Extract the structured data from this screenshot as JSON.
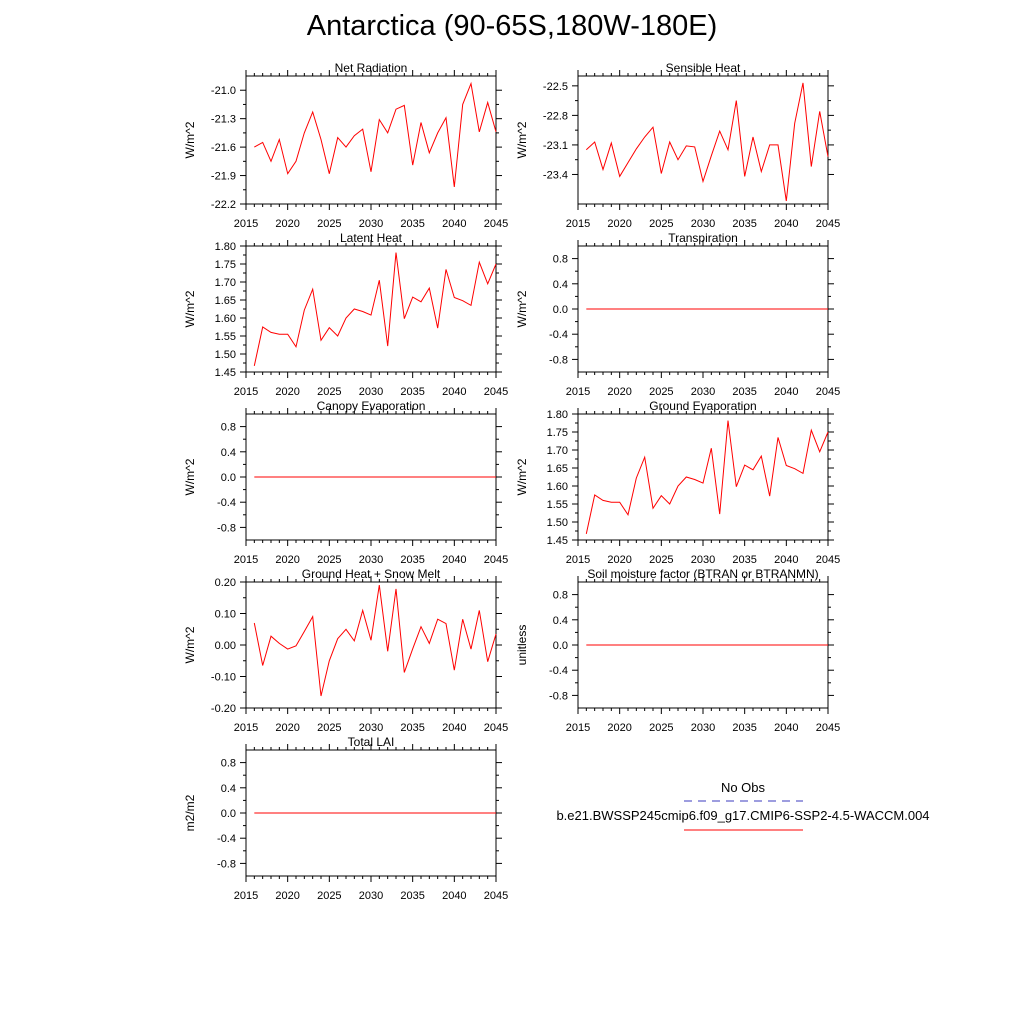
{
  "page": {
    "title": "Antarctica (90-65S,180W-180E)"
  },
  "colors": {
    "series": "#ff0000",
    "obs": "#3b3bbf",
    "axis": "#000000"
  },
  "legend": {
    "obs_label": "No Obs",
    "model_label": "b.e21.BWSSP245cmip6.f09_g17.CMIP6-SSP2-4.5-WACCM.004"
  },
  "chart_data": [
    {
      "type": "line",
      "title": "Net Radiation",
      "xlabel": "",
      "ylabel": "W/m^2",
      "xlim": [
        2015,
        2045
      ],
      "ylim": [
        -22.2,
        -20.85
      ],
      "xticks": [
        2015,
        2020,
        2025,
        2030,
        2035,
        2040,
        2045
      ],
      "yticks": [
        -22.2,
        -21.9,
        -21.6,
        -21.3,
        -21.0
      ],
      "ytick_labels": [
        "-22.2",
        "-21.9",
        "-21.6",
        "-21.3",
        "-21.0"
      ],
      "x": [
        2016,
        2017,
        2018,
        2019,
        2020,
        2021,
        2022,
        2023,
        2024,
        2025,
        2026,
        2027,
        2028,
        2029,
        2030,
        2031,
        2032,
        2033,
        2034,
        2035,
        2036,
        2037,
        2038,
        2039,
        2040,
        2041,
        2042,
        2043,
        2044,
        2045
      ],
      "values": [
        -21.6,
        -21.55,
        -21.75,
        -21.52,
        -21.88,
        -21.75,
        -21.45,
        -21.23,
        -21.52,
        -21.88,
        -21.5,
        -21.6,
        -21.48,
        -21.41,
        -21.86,
        -21.31,
        -21.45,
        -21.2,
        -21.16,
        -21.79,
        -21.34,
        -21.66,
        -21.45,
        -21.29,
        -22.02,
        -21.15,
        -20.93,
        -21.44,
        -21.13,
        -21.44
      ]
    },
    {
      "type": "line",
      "title": "Sensible Heat",
      "xlabel": "",
      "ylabel": "W/m^2",
      "xlim": [
        2015,
        2045
      ],
      "ylim": [
        -23.7,
        -22.4
      ],
      "xticks": [
        2015,
        2020,
        2025,
        2030,
        2035,
        2040,
        2045
      ],
      "yticks": [
        -23.4,
        -23.1,
        -22.8,
        -22.5
      ],
      "ytick_labels": [
        "-23.4",
        "-23.1",
        "-22.8",
        "-22.5"
      ],
      "x": [
        2016,
        2017,
        2018,
        2019,
        2020,
        2021,
        2022,
        2023,
        2024,
        2025,
        2026,
        2027,
        2028,
        2029,
        2030,
        2031,
        2032,
        2033,
        2034,
        2035,
        2036,
        2037,
        2038,
        2039,
        2040,
        2041,
        2042,
        2043,
        2044,
        2045
      ],
      "values": [
        -23.15,
        -23.07,
        -23.35,
        -23.08,
        -23.42,
        -23.28,
        -23.14,
        -23.02,
        -22.92,
        -23.39,
        -23.07,
        -23.25,
        -23.11,
        -23.12,
        -23.47,
        -23.21,
        -22.96,
        -23.15,
        -22.65,
        -23.42,
        -23.02,
        -23.37,
        -23.1,
        -23.1,
        -23.67,
        -22.88,
        -22.47,
        -23.32,
        -22.76,
        -23.22
      ]
    },
    {
      "type": "line",
      "title": "Latent Heat",
      "xlabel": "",
      "ylabel": "W/m^2",
      "xlim": [
        2015,
        2045
      ],
      "ylim": [
        1.45,
        1.8
      ],
      "xticks": [
        2015,
        2020,
        2025,
        2030,
        2035,
        2040,
        2045
      ],
      "yticks": [
        1.45,
        1.5,
        1.55,
        1.6,
        1.65,
        1.7,
        1.75,
        1.8
      ],
      "ytick_labels": [
        "1.45",
        "1.50",
        "1.55",
        "1.60",
        "1.65",
        "1.70",
        "1.75",
        "1.80"
      ],
      "x": [
        2016,
        2017,
        2018,
        2019,
        2020,
        2021,
        2022,
        2023,
        2024,
        2025,
        2026,
        2027,
        2028,
        2029,
        2030,
        2031,
        2032,
        2033,
        2034,
        2035,
        2036,
        2037,
        2038,
        2039,
        2040,
        2041,
        2042,
        2043,
        2044,
        2045
      ],
      "values": [
        1.467,
        1.575,
        1.56,
        1.555,
        1.555,
        1.52,
        1.622,
        1.68,
        1.538,
        1.573,
        1.55,
        1.6,
        1.625,
        1.618,
        1.608,
        1.705,
        1.522,
        1.782,
        1.598,
        1.658,
        1.645,
        1.683,
        1.572,
        1.735,
        1.657,
        1.648,
        1.635,
        1.755,
        1.695,
        1.75
      ]
    },
    {
      "type": "line",
      "title": "Transpiration",
      "xlabel": "",
      "ylabel": "W/m^2",
      "xlim": [
        2015,
        2045
      ],
      "ylim": [
        -1.0,
        1.0
      ],
      "xticks": [
        2015,
        2020,
        2025,
        2030,
        2035,
        2040,
        2045
      ],
      "yticks": [
        -0.8,
        -0.4,
        0.0,
        0.4,
        0.8
      ],
      "ytick_labels": [
        "-0.8",
        "-0.4",
        "0.0",
        "0.4",
        "0.8"
      ],
      "x": [
        2016,
        2045
      ],
      "values": [
        0.0,
        0.0
      ]
    },
    {
      "type": "line",
      "title": "Canopy Evaporation",
      "xlabel": "",
      "ylabel": "W/m^2",
      "xlim": [
        2015,
        2045
      ],
      "ylim": [
        -1.0,
        1.0
      ],
      "xticks": [
        2015,
        2020,
        2025,
        2030,
        2035,
        2040,
        2045
      ],
      "yticks": [
        -0.8,
        -0.4,
        0.0,
        0.4,
        0.8
      ],
      "ytick_labels": [
        "-0.8",
        "-0.4",
        "0.0",
        "0.4",
        "0.8"
      ],
      "x": [
        2016,
        2045
      ],
      "values": [
        0.0,
        0.0
      ]
    },
    {
      "type": "line",
      "title": "Ground Evaporation",
      "xlabel": "",
      "ylabel": "W/m^2",
      "xlim": [
        2015,
        2045
      ],
      "ylim": [
        1.45,
        1.8
      ],
      "xticks": [
        2015,
        2020,
        2025,
        2030,
        2035,
        2040,
        2045
      ],
      "yticks": [
        1.45,
        1.5,
        1.55,
        1.6,
        1.65,
        1.7,
        1.75,
        1.8
      ],
      "ytick_labels": [
        "1.45",
        "1.50",
        "1.55",
        "1.60",
        "1.65",
        "1.70",
        "1.75",
        "1.80"
      ],
      "x": [
        2016,
        2017,
        2018,
        2019,
        2020,
        2021,
        2022,
        2023,
        2024,
        2025,
        2026,
        2027,
        2028,
        2029,
        2030,
        2031,
        2032,
        2033,
        2034,
        2035,
        2036,
        2037,
        2038,
        2039,
        2040,
        2041,
        2042,
        2043,
        2044,
        2045
      ],
      "values": [
        1.467,
        1.575,
        1.56,
        1.555,
        1.555,
        1.52,
        1.622,
        1.68,
        1.538,
        1.573,
        1.55,
        1.6,
        1.625,
        1.618,
        1.608,
        1.705,
        1.522,
        1.782,
        1.598,
        1.658,
        1.645,
        1.683,
        1.572,
        1.735,
        1.657,
        1.648,
        1.635,
        1.755,
        1.695,
        1.75
      ]
    },
    {
      "type": "line",
      "title": "Ground Heat + Snow Melt",
      "xlabel": "",
      "ylabel": "W/m^2",
      "xlim": [
        2015,
        2045
      ],
      "ylim": [
        -0.2,
        0.2
      ],
      "xticks": [
        2015,
        2020,
        2025,
        2030,
        2035,
        2040,
        2045
      ],
      "yticks": [
        -0.2,
        -0.1,
        0.0,
        0.1,
        0.2
      ],
      "ytick_labels": [
        "-0.20",
        "-0.10",
        "0.00",
        "0.10",
        "0.20"
      ],
      "x": [
        2016,
        2017,
        2018,
        2019,
        2020,
        2021,
        2022,
        2023,
        2024,
        2025,
        2026,
        2027,
        2028,
        2029,
        2030,
        2031,
        2032,
        2033,
        2034,
        2035,
        2036,
        2037,
        2038,
        2039,
        2040,
        2041,
        2042,
        2043,
        2044,
        2045
      ],
      "values": [
        0.07,
        -0.065,
        0.028,
        0.005,
        -0.013,
        -0.003,
        0.043,
        0.09,
        -0.162,
        -0.05,
        0.02,
        0.05,
        0.013,
        0.11,
        0.015,
        0.19,
        -0.02,
        0.178,
        -0.087,
        -0.012,
        0.058,
        0.005,
        0.082,
        0.068,
        -0.08,
        0.082,
        -0.013,
        0.11,
        -0.053,
        0.035
      ]
    },
    {
      "type": "line",
      "title": "Soil moisture factor (BTRAN or BTRANMN)",
      "xlabel": "",
      "ylabel": "unitless",
      "xlim": [
        2015,
        2045
      ],
      "ylim": [
        -1.0,
        1.0
      ],
      "xticks": [
        2015,
        2020,
        2025,
        2030,
        2035,
        2040,
        2045
      ],
      "yticks": [
        -0.8,
        -0.4,
        0.0,
        0.4,
        0.8
      ],
      "ytick_labels": [
        "-0.8",
        "-0.4",
        "0.0",
        "0.4",
        "0.8"
      ],
      "x": [
        2016,
        2045
      ],
      "values": [
        0.0,
        0.0
      ]
    },
    {
      "type": "line",
      "title": "Total LAI",
      "xlabel": "",
      "ylabel": "m2/m2",
      "xlim": [
        2015,
        2045
      ],
      "ylim": [
        -1.0,
        1.0
      ],
      "xticks": [
        2015,
        2020,
        2025,
        2030,
        2035,
        2040,
        2045
      ],
      "yticks": [
        -0.8,
        -0.4,
        0.0,
        0.4,
        0.8
      ],
      "ytick_labels": [
        "-0.8",
        "-0.4",
        "0.0",
        "0.4",
        "0.8"
      ],
      "x": [
        2016,
        2045
      ],
      "values": [
        0.0,
        0.0
      ]
    }
  ]
}
